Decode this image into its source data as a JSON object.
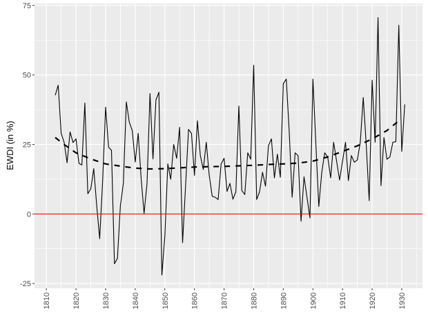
{
  "chart_data": {
    "type": "line",
    "title": "",
    "xlabel": "",
    "ylabel": "EWDI (in %)",
    "xlim": [
      1806,
      1937
    ],
    "ylim": [
      -26.7,
      75.7
    ],
    "x_ticks": [
      1810,
      1820,
      1830,
      1840,
      1850,
      1860,
      1870,
      1880,
      1890,
      1900,
      1910,
      1920,
      1930
    ],
    "x_tick_labels": [
      "1810",
      "1820",
      "1830",
      "1840",
      "1850",
      "1860",
      "1870",
      "1880",
      "1890",
      "1900",
      "1910",
      "1920",
      "1930"
    ],
    "y_ticks": [
      -25,
      0,
      25,
      50,
      75
    ],
    "y_tick_labels": [
      "-25",
      "0",
      "25",
      "50",
      "75"
    ],
    "grid": true,
    "background": "#ebebeb",
    "reference_line": {
      "y": 0,
      "color": "#ff0000"
    },
    "series": [
      {
        "style": "solid",
        "color": "#000000",
        "x": [
          1813,
          1814,
          1815,
          1816,
          1817,
          1818,
          1819,
          1820,
          1821,
          1822,
          1823,
          1824,
          1825,
          1826,
          1827,
          1828,
          1829,
          1830,
          1831,
          1832,
          1833,
          1834,
          1835,
          1836,
          1837,
          1838,
          1839,
          1840,
          1841,
          1842,
          1843,
          1844,
          1845,
          1846,
          1847,
          1848,
          1849,
          1850,
          1851,
          1852,
          1853,
          1854,
          1855,
          1856,
          1857,
          1858,
          1859,
          1860,
          1861,
          1862,
          1863,
          1864,
          1865,
          1866,
          1867,
          1868,
          1869,
          1870,
          1871,
          1872,
          1873,
          1874,
          1875,
          1876,
          1877,
          1878,
          1879,
          1880,
          1881,
          1882,
          1883,
          1884,
          1885,
          1886,
          1887,
          1888,
          1889,
          1890,
          1891,
          1892,
          1893,
          1894,
          1895,
          1896,
          1897,
          1898,
          1899,
          1900,
          1901,
          1902,
          1903,
          1904,
          1905,
          1906,
          1907,
          1908,
          1909,
          1910,
          1911,
          1912,
          1913,
          1914,
          1915,
          1916,
          1917,
          1918,
          1919,
          1920,
          1921,
          1922,
          1923,
          1924,
          1925,
          1926,
          1927,
          1928,
          1929,
          1930,
          1931
        ],
        "y": [
          42.7,
          46.3,
          29,
          25.8,
          18.4,
          29.5,
          25.7,
          27,
          18.2,
          17.6,
          39.9,
          7.3,
          9,
          16.3,
          3,
          -8.9,
          12,
          38.4,
          24,
          22.9,
          -17.9,
          -16,
          3,
          11,
          40.3,
          33,
          30,
          18.7,
          29,
          13,
          0.2,
          11,
          43.3,
          19.8,
          41,
          43.8,
          -22,
          -8,
          18,
          12.5,
          25,
          20,
          31.2,
          -10.3,
          10,
          30.4,
          29,
          13.9,
          33.5,
          21,
          16,
          25.8,
          13.9,
          6.4,
          6,
          5.2,
          18,
          20,
          8.1,
          11,
          5.3,
          8,
          38.8,
          8.4,
          7,
          22,
          19.7,
          53.5,
          5.2,
          8,
          15,
          10,
          24.6,
          27,
          13,
          21.5,
          13.2,
          46.9,
          48.5,
          30,
          6,
          22,
          21,
          -2.6,
          13.4,
          6,
          -1.4,
          48.5,
          25,
          2.7,
          15,
          22,
          20.5,
          13,
          25.8,
          19,
          12.2,
          19,
          25.8,
          12,
          21,
          18.6,
          19.4,
          25.8,
          41.9,
          25,
          4.8,
          48.1,
          25.8,
          70.6,
          10.2,
          27.5,
          19.7,
          20.5,
          25.8,
          26,
          67.9,
          22.5,
          39.4
        ]
      },
      {
        "style": "dashed",
        "color": "#000000",
        "x": [
          1813,
          1816,
          1820,
          1825,
          1830,
          1835,
          1840,
          1845,
          1850,
          1855,
          1860,
          1865,
          1870,
          1875,
          1880,
          1885,
          1890,
          1895,
          1900,
          1905,
          1910,
          1915,
          1920,
          1925,
          1929
        ],
        "y": [
          27.5,
          25,
          22,
          19.8,
          18,
          17.2,
          16.5,
          16.2,
          16.3,
          16.6,
          16.9,
          17,
          17.1,
          17.3,
          17.5,
          17.8,
          18,
          18.3,
          19,
          20.5,
          22.5,
          24.5,
          27,
          30,
          33.5
        ]
      }
    ]
  }
}
